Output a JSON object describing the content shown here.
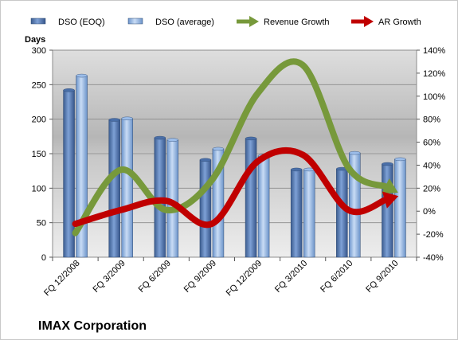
{
  "company": "IMAX Corporation",
  "chart_data": {
    "type": "bar",
    "categories": [
      "FQ 12/2008",
      "FQ 3/2009",
      "FQ 6/2009",
      "FQ 9/2009",
      "FQ 12/2009",
      "FQ 3/2010",
      "FQ 6/2010",
      "FQ 9/2010"
    ],
    "series": [
      {
        "name": "DSO (EOQ)",
        "type": "bar",
        "axis": "left",
        "color": "#5a7db3",
        "values": [
          242,
          199,
          173,
          141,
          172,
          127,
          128,
          135
        ]
      },
      {
        "name": "DSO (average)",
        "type": "bar",
        "axis": "left",
        "color": "#8fb3e3",
        "values": [
          263,
          201,
          170,
          157,
          147,
          127,
          151,
          142
        ]
      },
      {
        "name": "Revenue Growth",
        "type": "line",
        "axis": "right",
        "color": "#77993b",
        "unit": "%",
        "values": [
          -19,
          36,
          1,
          27,
          102,
          127,
          38,
          18
        ]
      },
      {
        "name": "AR Growth",
        "type": "line",
        "axis": "right",
        "color": "#c00000",
        "unit": "%",
        "values": [
          -11,
          1,
          9,
          -11,
          43,
          49,
          1,
          12
        ]
      }
    ],
    "ylabel": "Days",
    "ylim": [
      0,
      300
    ],
    "yticks": [
      0,
      50,
      100,
      150,
      200,
      250,
      300
    ],
    "y2lim": [
      -40,
      140
    ],
    "y2ticks": [
      -40,
      -20,
      0,
      20,
      40,
      60,
      80,
      100,
      120,
      140
    ],
    "y2tick_suffix": "%",
    "grid": true,
    "legend_position": "top"
  }
}
